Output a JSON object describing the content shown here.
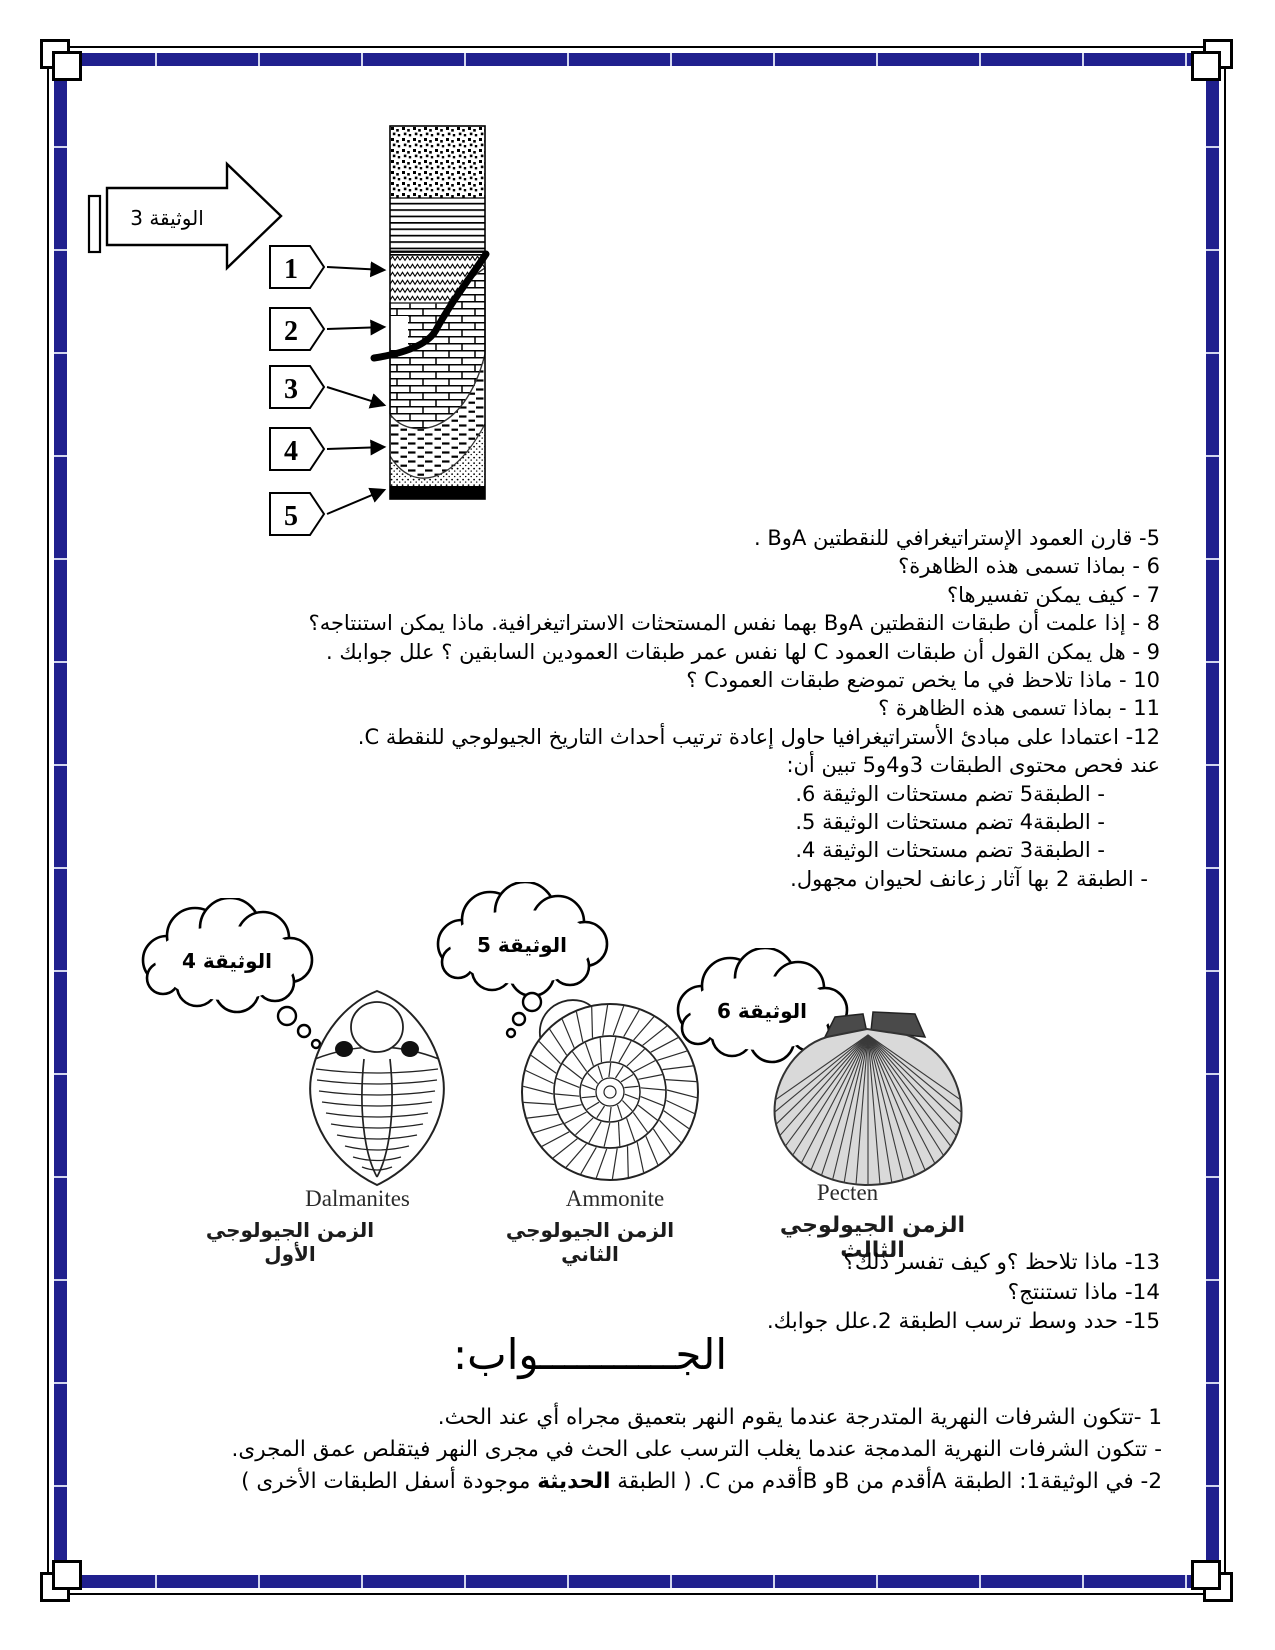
{
  "border": {
    "color": "#20208e"
  },
  "figure3": {
    "label": "الوثيقة 3",
    "callouts": [
      "1",
      "2",
      "3",
      "4",
      "5"
    ]
  },
  "questions": {
    "lines": [
      "5- قارن العمود الإستراتيغرافي للنقطتين  AوB  .",
      "6 - بماذا تسمى هذه الظاهرة؟",
      "7 - كيف يمكن تفسيرها؟",
      "8 - إذا علمت أن طبقات النقطتين  AوB  بهما نفس المستحثات الاستراتيغرافية. ماذا يمكن استنتاجه؟",
      "9 - هل يمكن القول أن طبقات العمود C لها نفس عمر طبقات العمودين السابقين ؟ علل جوابك .",
      "10 - ماذا تلاحظ في ما يخص تموضع طبقات العمودC ؟",
      "11 - بماذا تسمى هذه الظاهرة ؟",
      "12- اعتمادا على مبادئ الأستراتيغرافيا حاول إعادة ترتيب أحداث التاريخ الجيولوجي للنقطة C.",
      "عند فحص محتوى الطبقات 3و4و5 تبين أن:",
      "-  الطبقة5 تضم مستحثات الوثيقة 6.",
      "-  الطبقة4 تضم مستحثات الوثيقة 5.",
      "-  الطبقة3 تضم مستحثات الوثيقة 4.",
      "- الطبقة 2 بها آثار زعانف لحيوان مجهول."
    ]
  },
  "fossils": {
    "doc4": "الوثيقة 4",
    "doc5": "الوثيقة  5",
    "doc6": "الوثيقة 6",
    "name1": "Dalmanites",
    "name2": "Ammonite",
    "name3": "Pecten",
    "era1": "الزمن الجيولوجي الأول",
    "era2": "الزمن الجيولوجي الثاني",
    "era3": "الزمن الجيولوجي الثالث"
  },
  "questions2": {
    "lines": [
      "13- ماذا تلاحظ ؟و كيف تفسر ذلك؟",
      "14- ماذا تستنتج؟",
      "15- حدد وسط ترسب الطبقة 2.علل جوابك."
    ]
  },
  "answers": {
    "heading": "الجـــــــــــواب:",
    "line1": "1 -تتكون الشرفات النهرية المتدرجة عندما يقوم النهر بتعميق مجراه أي عند الحث.",
    "line2": "- تتكون الشرفات النهرية المدمجة عندما يغلب الترسب على الحث في مجرى النهر فيتقلص عمق المجرى.",
    "line3_before": "2- في الوثيقة1: الطبقة Aأقدم من  Bو  Bأقدم من C. ( الطبقة ",
    "line3_bold": "الحديثة",
    "line3_after": " موجودة أسفل الطبقات الأخرى )"
  }
}
